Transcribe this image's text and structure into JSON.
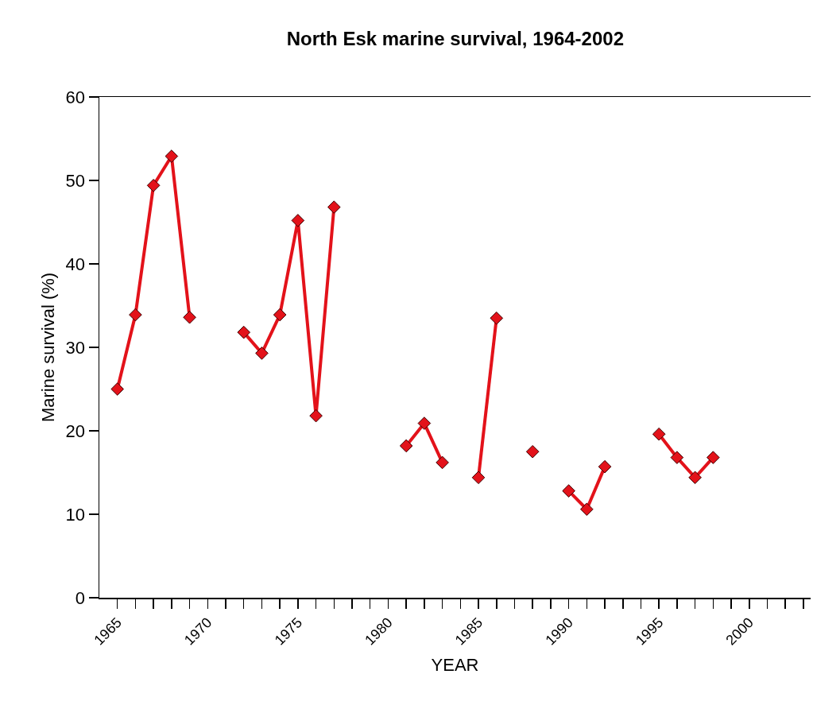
{
  "chart_data": {
    "type": "line",
    "title": "North Esk marine survival, 1964-2002",
    "xlabel": "YEAR",
    "ylabel": "Marine survival (%)",
    "x": [
      1965,
      1966,
      1967,
      1968,
      1969,
      1970,
      1971,
      1972,
      1973,
      1974,
      1975,
      1976,
      1977,
      1978,
      1979,
      1980,
      1981,
      1982,
      1983,
      1984,
      1985,
      1986,
      1987,
      1988,
      1989,
      1990,
      1991,
      1992,
      1993,
      1994,
      1995,
      1996,
      1997,
      1998
    ],
    "series": [
      {
        "color": "#e3121a",
        "values": [
          25.0,
          33.9,
          49.4,
          52.9,
          33.6,
          null,
          null,
          31.8,
          29.3,
          33.9,
          45.2,
          21.8,
          46.8,
          null,
          null,
          null,
          18.2,
          20.9,
          16.2,
          null,
          14.4,
          33.5,
          null,
          17.5,
          null,
          12.8,
          10.6,
          15.7,
          null,
          null,
          19.6,
          16.8,
          14.4,
          16.8
        ]
      }
    ],
    "marker": "diamond",
    "line_style": "solid",
    "xlim": [
      1964,
      2003.4
    ],
    "xticks": [
      1965,
      {
        "value": 1966,
        "label": null
      },
      {
        "value": 1967,
        "label": null
      },
      {
        "value": 1968,
        "label": null
      },
      {
        "value": 1969,
        "label": null
      },
      1970,
      {
        "value": 1971,
        "label": null
      },
      {
        "value": 1972,
        "label": null
      },
      {
        "value": 1973,
        "label": null
      },
      {
        "value": 1974,
        "label": null
      },
      1975,
      {
        "value": 1976,
        "label": null
      },
      {
        "value": 1977,
        "label": null
      },
      {
        "value": 1978,
        "label": null
      },
      {
        "value": 1979,
        "label": null
      },
      1980,
      {
        "value": 1981,
        "label": null
      },
      {
        "value": 1982,
        "label": null
      },
      {
        "value": 1983,
        "label": null
      },
      {
        "value": 1984,
        "label": null
      },
      1985,
      {
        "value": 1986,
        "label": null
      },
      {
        "value": 1987,
        "label": null
      },
      {
        "value": 1988,
        "label": null
      },
      {
        "value": 1989,
        "label": null
      },
      1990,
      {
        "value": 1991,
        "label": null
      },
      {
        "value": 1992,
        "label": null
      },
      {
        "value": 1993,
        "label": null
      },
      {
        "value": 1994,
        "label": null
      },
      1995,
      {
        "value": 1996,
        "label": null
      },
      {
        "value": 1997,
        "label": null
      },
      {
        "value": 1998,
        "label": null
      },
      {
        "value": 1999,
        "label": null
      },
      2000,
      {
        "value": 2001,
        "label": null
      },
      {
        "value": 2002,
        "label": null
      },
      {
        "value": 2003,
        "label": null
      }
    ],
    "ylim": [
      0,
      60
    ],
    "yticks": [
      0,
      10,
      20,
      30,
      40,
      50,
      60
    ]
  }
}
